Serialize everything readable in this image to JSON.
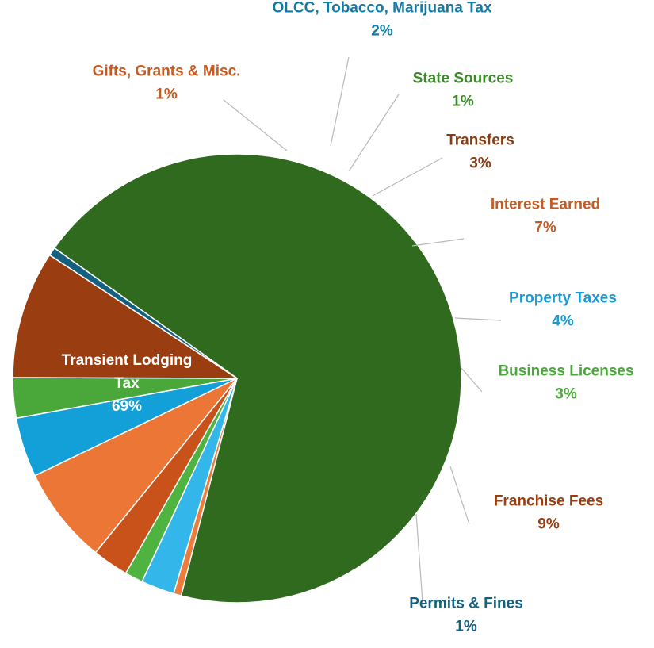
{
  "chart_data": {
    "type": "pie",
    "title": "",
    "slices": [
      {
        "name": "Transient Lodging Tax",
        "value": 69.15,
        "label": "69%",
        "color": "#2f6a1e",
        "label_color": "#ffffff"
      },
      {
        "name": "Gifts, Grants & Misc.",
        "value": 0.55,
        "label": "1%",
        "color": "#ee7a3c",
        "label_color": "#c55a22"
      },
      {
        "name": "OLCC, Tobacco, Marijuana Tax",
        "value": 2.4,
        "label": "2%",
        "color": "#33b7ea",
        "label_color": "#127aa6"
      },
      {
        "name": "State Sources",
        "value": 1.3,
        "label": "1%",
        "color": "#4fb33f",
        "label_color": "#3a8a26"
      },
      {
        "name": "Transfers",
        "value": 2.6,
        "label": "3%",
        "color": "#c9521a",
        "label_color": "#8a3b12"
      },
      {
        "name": "Interest Earned",
        "value": 7.0,
        "label": "7%",
        "color": "#eb7636",
        "label_color": "#c55a22"
      },
      {
        "name": "Property Taxes",
        "value": 4.3,
        "label": "4%",
        "color": "#139fd7",
        "label_color": "#1c9ad0"
      },
      {
        "name": "Business Licenses",
        "value": 2.9,
        "label": "3%",
        "color": "#4aa83a",
        "label_color": "#4aa83a"
      },
      {
        "name": "Franchise Fees",
        "value": 9.2,
        "label": "9%",
        "color": "#9a3e12",
        "label_color": "#9a3e12"
      },
      {
        "name": "Permits & Fines",
        "value": 0.6,
        "label": "1%",
        "color": "#13607f",
        "label_color": "#13607f"
      }
    ],
    "labels": [
      {
        "lines": [
          "Transient Lodging",
          "Tax"
        ],
        "pct": "69%"
      },
      {
        "lines": [
          "Gifts, Grants & Misc."
        ],
        "pct": "1%"
      },
      {
        "lines": [
          "OLCC, Tobacco, Marijuana Tax"
        ],
        "pct": "2%"
      },
      {
        "lines": [
          "State Sources"
        ],
        "pct": "1%"
      },
      {
        "lines": [
          "Transfers"
        ],
        "pct": "3%"
      },
      {
        "lines": [
          "Interest Earned"
        ],
        "pct": "7%"
      },
      {
        "lines": [
          "Property Taxes"
        ],
        "pct": "4%"
      },
      {
        "lines": [
          "Business Licenses"
        ],
        "pct": "3%"
      },
      {
        "lines": [
          "Franchise Fees"
        ],
        "pct": "9%"
      },
      {
        "lines": [
          "Permits & Fines"
        ],
        "pct": "1%"
      }
    ]
  }
}
